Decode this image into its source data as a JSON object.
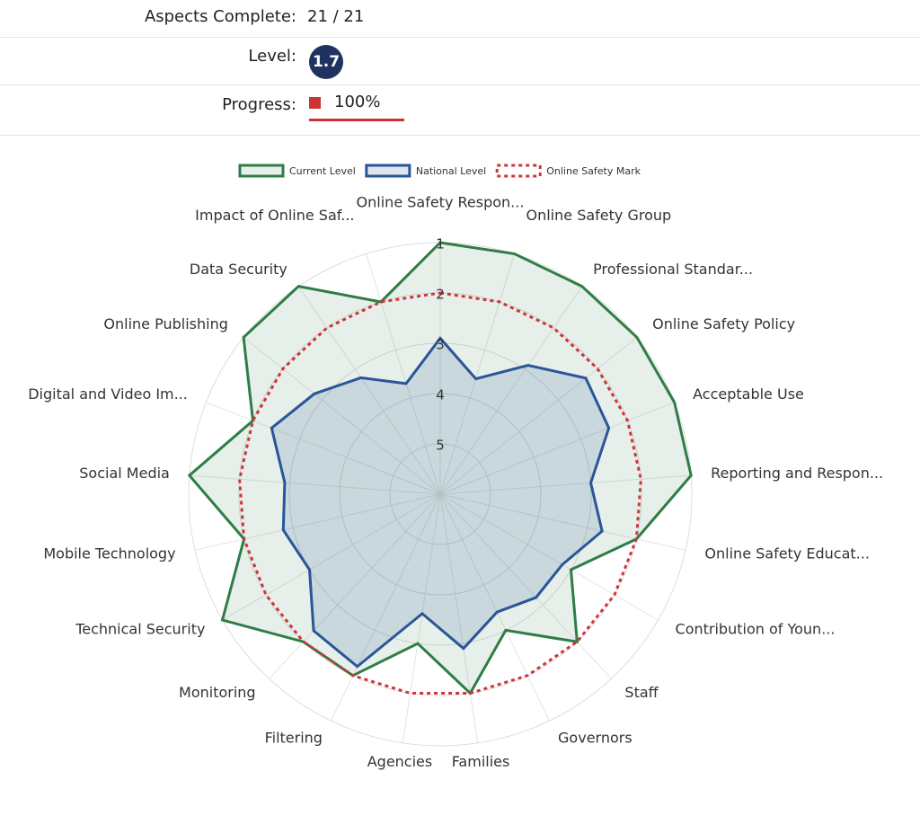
{
  "header": {
    "rows": [
      {
        "label": "Aspects Complete:",
        "value": "21 / 21"
      },
      {
        "label": "Level:",
        "value": "1.7"
      },
      {
        "label": "Progress:",
        "value": "100%"
      }
    ]
  },
  "chart_data": {
    "type": "radar",
    "categories": [
      "Online Safety Respon...",
      "Online Safety Group",
      "Professional Standar...",
      "Online Safety Policy",
      "Acceptable Use",
      "Reporting and Respon...",
      "Online Safety Educat...",
      "Contribution of Youn...",
      "Staff",
      "Governors",
      "Families",
      "Agencies",
      "Filtering",
      "Monitoring",
      "Technical Security",
      "Mobile Technology",
      "Social Media",
      "Digital and Video Im...",
      "Online Publishing",
      "Data Security",
      "Impact of Online Saf..."
    ],
    "series": [
      {
        "name": "Current Level",
        "color": "#2e7d46",
        "fill": "rgba(46,125,70,0.12)",
        "style": "solid",
        "values": [
          1,
          1,
          1,
          1,
          1,
          1,
          2,
          3,
          2,
          3,
          2,
          3,
          2,
          2,
          1,
          2,
          1,
          2,
          1,
          1,
          2
        ]
      },
      {
        "name": "National Level",
        "color": "#2a5599",
        "fill": "rgba(42,85,153,0.15)",
        "style": "solid",
        "values": [
          2.9,
          3.6,
          2.9,
          2.3,
          2.4,
          3.0,
          2.7,
          3.2,
          3.2,
          3.4,
          2.9,
          3.6,
          2.2,
          2.3,
          3.0,
          2.8,
          2.9,
          2.4,
          2.8,
          3.2,
          3.7
        ]
      },
      {
        "name": "Online Safety Mark",
        "color": "#d0343a",
        "fill": "none",
        "style": "dotted",
        "values": [
          2,
          2,
          2,
          2,
          2,
          2,
          2,
          2,
          2,
          2,
          2,
          2,
          2,
          2,
          2,
          2,
          2,
          2,
          2,
          2,
          2
        ]
      }
    ],
    "rlim": [
      6,
      1
    ],
    "rticks": [
      1,
      2,
      3,
      4,
      5
    ],
    "grid": true,
    "legend": "top"
  }
}
